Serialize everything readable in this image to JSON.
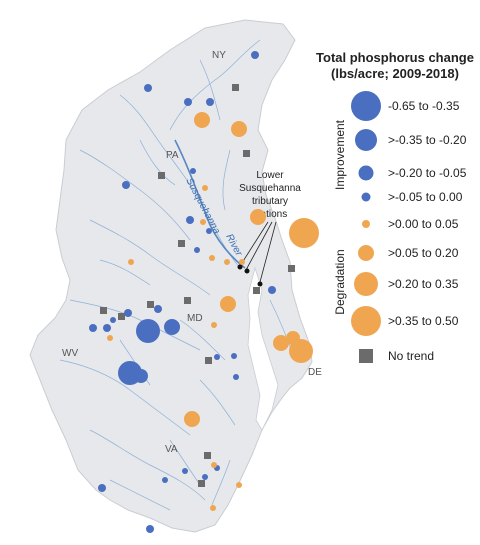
{
  "legend": {
    "title_line1": "Total phosphorus change",
    "title_line2": "(lbs/acre; 2009-2018)",
    "improvement_label": "Improvement",
    "degradation_label": "Degradation",
    "items": [
      {
        "label": "-0.65 to -0.35",
        "class": "improvement",
        "magnitude": 4
      },
      {
        "label": ">-0.35 to -0.20",
        "class": "improvement",
        "magnitude": 3
      },
      {
        "label": ">-0.20 to -0.05",
        "class": "improvement",
        "magnitude": 2
      },
      {
        "label": ">-0.05 to 0.00",
        "class": "improvement",
        "magnitude": 1
      },
      {
        "label": ">0.00 to 0.05",
        "class": "degradation",
        "magnitude": 1
      },
      {
        "label": ">0.05 to 0.20",
        "class": "degradation",
        "magnitude": 2
      },
      {
        "label": ">0.20 to 0.35",
        "class": "degradation",
        "magnitude": 3
      },
      {
        "label": ">0.35 to 0.50",
        "class": "degradation",
        "magnitude": 4
      },
      {
        "label": "No trend",
        "class": "no-trend",
        "magnitude": 0
      }
    ]
  },
  "map": {
    "state_labels": [
      "NY",
      "PA",
      "MD",
      "WV",
      "DE",
      "VA"
    ],
    "river_label_1": "Susquehanna",
    "river_label_2": "River",
    "annotation_line1": "Lower",
    "annotation_line2": "Susquehanna",
    "annotation_line3": "tributary",
    "annotation_line4": "stations"
  },
  "colors": {
    "improvement": "#4a6fc0",
    "degradation": "#f0a650",
    "no_trend": "#6b6b6b",
    "land": "#e6e8eb",
    "water_lines": "#8fb0d8"
  }
}
